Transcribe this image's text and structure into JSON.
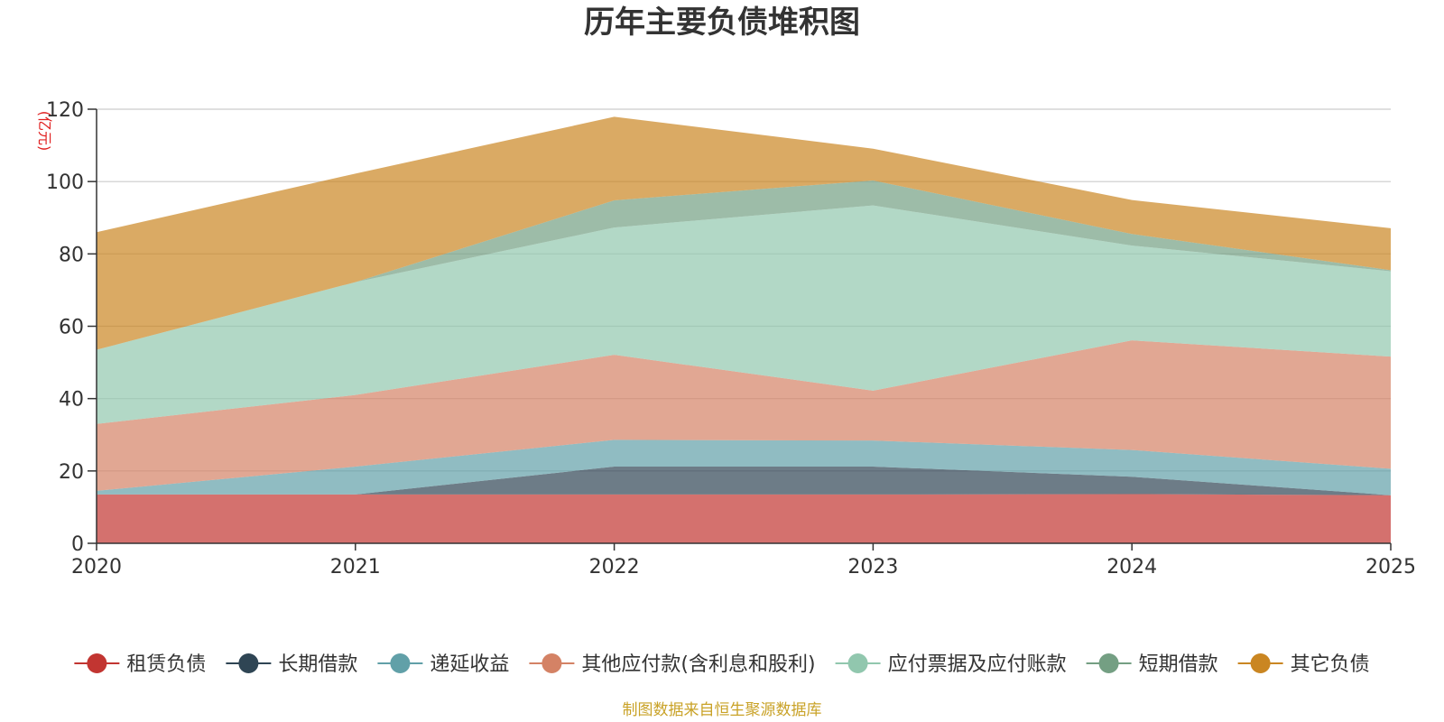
{
  "chart_data": {
    "type": "area",
    "stacked": true,
    "title": "历年主要负债堆积图",
    "ylabel": "(亿元)",
    "xlabel": "",
    "x": [
      "2020",
      "2021",
      "2022",
      "2023",
      "2024",
      "2025"
    ],
    "y_ticks": [
      "0",
      "20",
      "40",
      "60",
      "80",
      "100",
      "120"
    ],
    "ylim": [
      0,
      120
    ],
    "grid": true,
    "legend_position": "bottom",
    "series": [
      {
        "name": "租赁负债",
        "color": "#c23531",
        "values": [
          13.5,
          13.5,
          13.5,
          13.5,
          13.6,
          13.3
        ]
      },
      {
        "name": "长期借款",
        "color": "#2f4554",
        "values": [
          0,
          0,
          7.7,
          7.7,
          4.8,
          0
        ]
      },
      {
        "name": "递延收益",
        "color": "#61a0a8",
        "values": [
          1.0,
          7.7,
          7.4,
          7.2,
          7.4,
          7.3
        ]
      },
      {
        "name": "其他应付款(含利息和股利)",
        "color": "#d48265",
        "values": [
          18.5,
          19.8,
          23.5,
          13.8,
          30.3,
          31.0
        ]
      },
      {
        "name": "应付票据及应付账款",
        "color": "#91c7ae",
        "values": [
          20.5,
          31.2,
          35.2,
          51.2,
          26.2,
          23.6
        ]
      },
      {
        "name": "短期借款",
        "color": "#749f83",
        "values": [
          0,
          0,
          7.5,
          6.9,
          3.2,
          0.3
        ]
      },
      {
        "name": "其它负债",
        "color": "#ca8622",
        "values": [
          32.5,
          30.0,
          23.1,
          8.8,
          9.4,
          11.6
        ]
      }
    ],
    "source_note": "制图数据来自恒生聚源数据库"
  }
}
